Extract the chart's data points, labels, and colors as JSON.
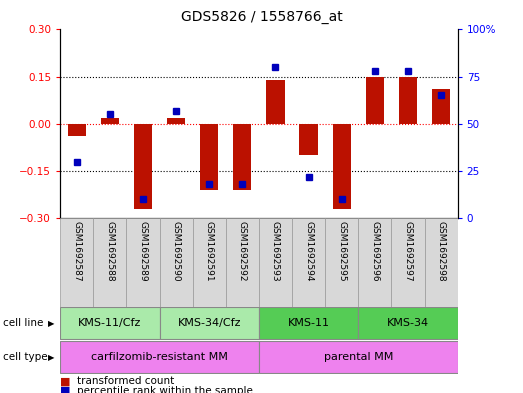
{
  "title": "GDS5826 / 1558766_at",
  "samples": [
    "GSM1692587",
    "GSM1692588",
    "GSM1692589",
    "GSM1692590",
    "GSM1692591",
    "GSM1692592",
    "GSM1692593",
    "GSM1692594",
    "GSM1692595",
    "GSM1692596",
    "GSM1692597",
    "GSM1692598"
  ],
  "transformed_count": [
    -0.04,
    0.02,
    -0.27,
    0.02,
    -0.21,
    -0.21,
    0.14,
    -0.1,
    -0.27,
    0.15,
    0.15,
    0.11
  ],
  "percentile_rank": [
    30,
    55,
    10,
    57,
    18,
    18,
    80,
    22,
    10,
    78,
    78,
    65
  ],
  "cell_line_groups": [
    {
      "label": "KMS-11/Cfz",
      "start": 0,
      "end": 3,
      "color": "#AAEAAA"
    },
    {
      "label": "KMS-34/Cfz",
      "start": 3,
      "end": 6,
      "color": "#AAEAAA"
    },
    {
      "label": "KMS-11",
      "start": 6,
      "end": 9,
      "color": "#55CC55"
    },
    {
      "label": "KMS-34",
      "start": 9,
      "end": 12,
      "color": "#55CC55"
    }
  ],
  "cell_type_groups": [
    {
      "label": "carfilzomib-resistant MM",
      "start": 0,
      "end": 6,
      "color": "#EE82EE"
    },
    {
      "label": "parental MM",
      "start": 6,
      "end": 12,
      "color": "#EE82EE"
    }
  ],
  "ylim_left": [
    -0.3,
    0.3
  ],
  "ylim_right": [
    0,
    100
  ],
  "yticks_left": [
    -0.3,
    -0.15,
    0,
    0.15,
    0.3
  ],
  "yticks_right": [
    0,
    25,
    50,
    75,
    100
  ],
  "bar_color": "#BB1100",
  "dot_color": "#0000BB",
  "bar_width": 0.55,
  "dot_size": 30,
  "tick_fontsize": 7.5,
  "title_fontsize": 10,
  "sample_fontsize": 6.5,
  "group_fontsize": 8,
  "legend_fontsize": 7.5
}
